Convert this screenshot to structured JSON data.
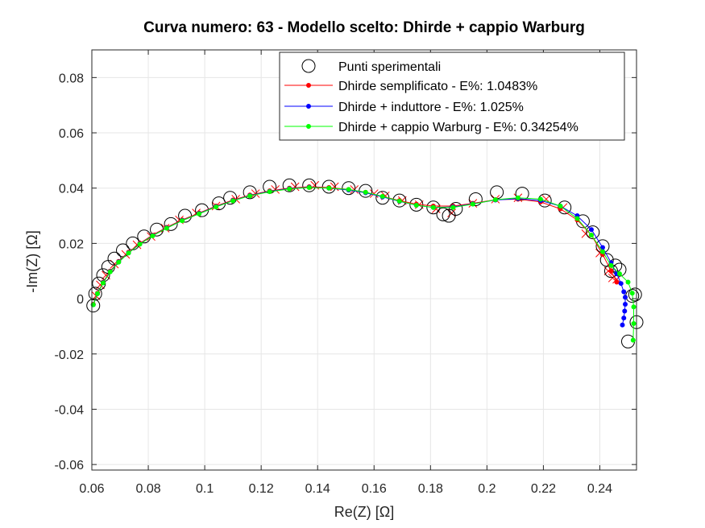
{
  "chart_data": {
    "type": "scatter",
    "title": "Curva numero: 63 - Modello scelto: Dhirde + cappio Warburg",
    "xlabel": "Re(Z) [Ω]",
    "ylabel": "-Im(Z) [Ω]",
    "xlim": [
      0.06,
      0.253
    ],
    "ylim": [
      -0.062,
      0.09
    ],
    "x_ticks": [
      0.06,
      0.08,
      0.1,
      0.12,
      0.14,
      0.16,
      0.18,
      0.2,
      0.22,
      0.24
    ],
    "x_tick_labels": [
      "0.06",
      "0.08",
      "0.1",
      "0.12",
      "0.14",
      "0.16",
      "0.18",
      "0.2",
      "0.22",
      "0.24"
    ],
    "y_ticks": [
      -0.06,
      -0.04,
      -0.02,
      0,
      0.02,
      0.04,
      0.06,
      0.08
    ],
    "y_tick_labels": [
      "-0.06",
      "-0.04",
      "-0.02",
      "0",
      "0.02",
      "0.04",
      "0.06",
      "0.08"
    ],
    "grid": true,
    "legend_position": "top-right",
    "colors": {
      "experimental": "#000000",
      "dhirde_semplificato": "#ff0000",
      "dhirde_induttore": "#0000ff",
      "dhirde_warburg": "#00ff00",
      "axes": "#262626",
      "grid": "#e6e6e6"
    },
    "series": [
      {
        "name": "Punti sperimentali",
        "marker": "open-circle",
        "x": [
          0.0605,
          0.0612,
          0.0625,
          0.064,
          0.0658,
          0.068,
          0.071,
          0.0745,
          0.0785,
          0.083,
          0.088,
          0.093,
          0.099,
          0.105,
          0.109,
          0.116,
          0.123,
          0.13,
          0.137,
          0.144,
          0.151,
          0.157,
          0.163,
          0.169,
          0.175,
          0.181,
          0.1845,
          0.1865,
          0.189,
          0.196,
          0.2035,
          0.2125,
          0.2205,
          0.2275,
          0.234,
          0.2375,
          0.241,
          0.2425,
          0.244,
          0.2455,
          0.247,
          0.2515,
          0.2525,
          0.25,
          0.253
        ],
        "y": [
          -0.0025,
          0.0018,
          0.0055,
          0.0085,
          0.0115,
          0.0145,
          0.0175,
          0.02,
          0.0225,
          0.025,
          0.027,
          0.03,
          0.032,
          0.0345,
          0.0365,
          0.0385,
          0.0405,
          0.041,
          0.041,
          0.0405,
          0.04,
          0.039,
          0.0365,
          0.0355,
          0.034,
          0.033,
          0.0305,
          0.03,
          0.0325,
          0.036,
          0.0385,
          0.038,
          0.0355,
          0.033,
          0.028,
          0.024,
          0.019,
          0.014,
          0.01,
          0.012,
          0.0105,
          0.001,
          0.0015,
          -0.0155,
          -0.0085
        ]
      },
      {
        "name": "Dhirde semplificato - E%: 1.0483%",
        "marker": "dot-line",
        "x": [
          0.0605,
          0.062,
          0.064,
          0.0665,
          0.0695,
          0.073,
          0.077,
          0.0815,
          0.0865,
          0.092,
          0.098,
          0.104,
          0.11,
          0.116,
          0.123,
          0.13,
          0.137,
          0.144,
          0.151,
          0.157,
          0.163,
          0.169,
          0.175,
          0.181,
          0.188,
          0.195,
          0.203,
          0.211,
          0.219,
          0.226,
          0.232,
          0.237,
          0.241,
          0.244,
          0.246
        ],
        "y": [
          -0.002,
          0.002,
          0.006,
          0.01,
          0.0135,
          0.0168,
          0.02,
          0.023,
          0.0258,
          0.0285,
          0.031,
          0.0335,
          0.0357,
          0.0375,
          0.039,
          0.04,
          0.0405,
          0.0402,
          0.0395,
          0.0385,
          0.037,
          0.0355,
          0.0342,
          0.0335,
          0.0335,
          0.0345,
          0.0358,
          0.036,
          0.035,
          0.0325,
          0.0285,
          0.023,
          0.016,
          0.01,
          0.006
        ]
      },
      {
        "name": "Dhirde + induttore - E%: 1.025%",
        "marker": "dot-line",
        "x": [
          0.0605,
          0.062,
          0.064,
          0.0665,
          0.0695,
          0.073,
          0.077,
          0.0815,
          0.0865,
          0.092,
          0.098,
          0.104,
          0.11,
          0.116,
          0.123,
          0.13,
          0.137,
          0.144,
          0.151,
          0.157,
          0.163,
          0.169,
          0.175,
          0.181,
          0.188,
          0.195,
          0.203,
          0.211,
          0.219,
          0.226,
          0.232,
          0.237,
          0.241,
          0.244,
          0.246,
          0.2475,
          0.2485,
          0.249,
          0.249,
          0.2488,
          0.2485,
          0.248
        ],
        "y": [
          -0.0022,
          0.0018,
          0.0058,
          0.0098,
          0.0133,
          0.0166,
          0.0198,
          0.0228,
          0.0256,
          0.0283,
          0.0308,
          0.0333,
          0.0355,
          0.0373,
          0.0388,
          0.0398,
          0.0403,
          0.04,
          0.0393,
          0.0383,
          0.0368,
          0.0352,
          0.0338,
          0.033,
          0.0332,
          0.0343,
          0.0357,
          0.0362,
          0.0355,
          0.0335,
          0.03,
          0.025,
          0.0185,
          0.013,
          0.009,
          0.0055,
          0.0025,
          0.0005,
          -0.002,
          -0.0045,
          -0.007,
          -0.0095
        ]
      },
      {
        "name": "Dhirde + cappio Warburg - E%: 0.34254%",
        "marker": "dot-line",
        "x": [
          0.0605,
          0.062,
          0.064,
          0.0665,
          0.0695,
          0.073,
          0.077,
          0.0815,
          0.0865,
          0.092,
          0.098,
          0.104,
          0.11,
          0.116,
          0.123,
          0.13,
          0.137,
          0.144,
          0.151,
          0.157,
          0.163,
          0.169,
          0.175,
          0.181,
          0.188,
          0.195,
          0.203,
          0.211,
          0.219,
          0.226,
          0.232,
          0.237,
          0.241,
          0.244,
          0.247,
          0.25,
          0.2515,
          0.252,
          0.252,
          0.2518
        ],
        "y": [
          -0.0022,
          0.0018,
          0.0057,
          0.0097,
          0.0132,
          0.0165,
          0.0197,
          0.0227,
          0.0255,
          0.0282,
          0.0307,
          0.0332,
          0.0354,
          0.0372,
          0.0387,
          0.0397,
          0.0402,
          0.04,
          0.0395,
          0.0385,
          0.037,
          0.0353,
          0.0338,
          0.033,
          0.033,
          0.0342,
          0.0358,
          0.0365,
          0.036,
          0.0335,
          0.029,
          0.023,
          0.017,
          0.012,
          0.009,
          0.006,
          0.002,
          -0.003,
          -0.009,
          -0.015
        ]
      },
      {
        "name": "",
        "marker": "cross",
        "x": [
          0.0615,
          0.063,
          0.065,
          0.068,
          0.072,
          0.076,
          0.081,
          0.086,
          0.091,
          0.097,
          0.104,
          0.111,
          0.118,
          0.125,
          0.132,
          0.139,
          0.146,
          0.153,
          0.16,
          0.164,
          0.17,
          0.176,
          0.182,
          0.1875,
          0.195,
          0.203,
          0.211,
          0.221,
          0.227,
          0.235,
          0.24,
          0.243,
          0.2445,
          0.246
        ],
        "y": [
          0.001,
          0.005,
          0.0085,
          0.0125,
          0.016,
          0.0195,
          0.0225,
          0.0255,
          0.0285,
          0.031,
          0.0335,
          0.036,
          0.038,
          0.0395,
          0.0405,
          0.041,
          0.0405,
          0.0395,
          0.038,
          0.0372,
          0.0355,
          0.034,
          0.0325,
          0.031,
          0.0345,
          0.036,
          0.0365,
          0.036,
          0.033,
          0.0235,
          0.0165,
          0.01,
          0.0075,
          0.007
        ]
      }
    ]
  }
}
